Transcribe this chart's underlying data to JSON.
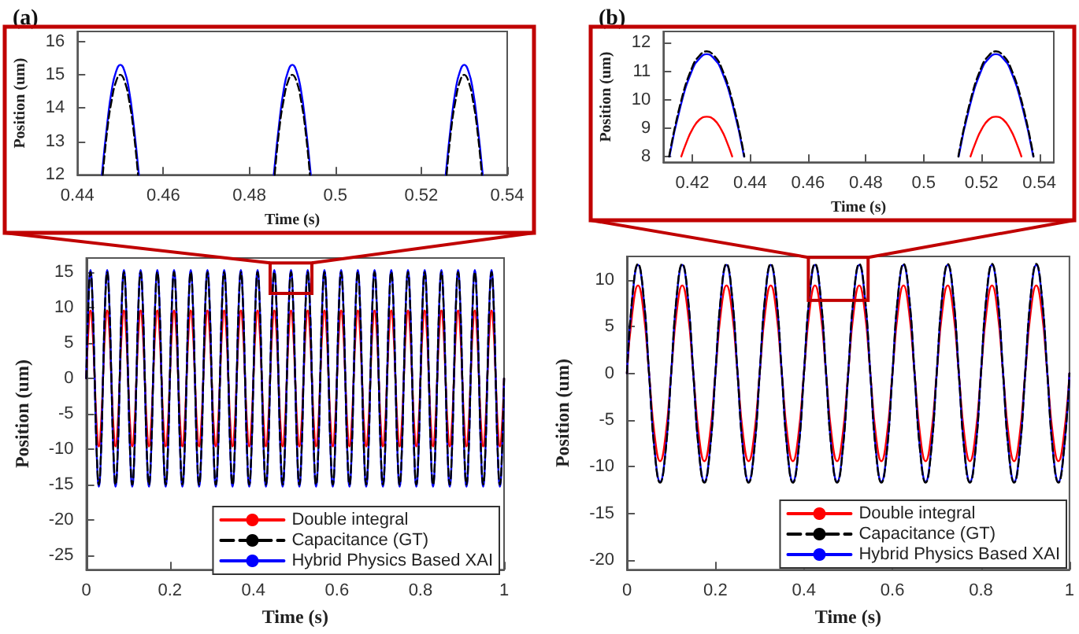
{
  "chart_data": [
    {
      "type": "line",
      "title": "(a)",
      "xlabel": "Time (s)",
      "ylabel": "Position (um)",
      "xlim": [
        0.44,
        0.54
      ],
      "xticks": [
        0.44,
        0.46,
        0.48,
        0.5,
        0.52,
        0.54
      ],
      "ylim": [
        12,
        16.3
      ],
      "yticks": [
        12,
        13,
        14,
        15,
        16
      ],
      "marker": "none",
      "series": [
        {
          "color": "#0000ff",
          "line_style": "solid",
          "x": [
            0.4457,
            0.447,
            0.448,
            0.449,
            0.45,
            0.451,
            0.452,
            0.453,
            0.4543,
            0.47,
            0.4857,
            0.487,
            0.488,
            0.489,
            0.49,
            0.491,
            0.492,
            0.493,
            0.4943,
            0.51,
            0.5257,
            0.527,
            0.528,
            0.529,
            0.53,
            0.531,
            0.532,
            0.533,
            0.5343
          ],
          "values": [
            12,
            13.6,
            14.55,
            15.1,
            15.3,
            15.1,
            14.55,
            13.6,
            12,
            null,
            12,
            13.6,
            14.55,
            15.1,
            15.3,
            15.1,
            14.55,
            13.6,
            12,
            null,
            12,
            13.6,
            14.55,
            15.1,
            15.3,
            15.1,
            14.55,
            13.6,
            12
          ]
        },
        {
          "color": "#000000",
          "line_style": "dashed",
          "x": [
            0.4459,
            0.447,
            0.448,
            0.449,
            0.45,
            0.451,
            0.452,
            0.453,
            0.4541,
            0.47,
            0.4859,
            0.487,
            0.488,
            0.489,
            0.49,
            0.491,
            0.492,
            0.493,
            0.4941,
            0.51,
            0.5259,
            0.527,
            0.528,
            0.529,
            0.53,
            0.531,
            0.532,
            0.533,
            0.5341
          ],
          "values": [
            12,
            13.4,
            14.25,
            14.8,
            15,
            14.8,
            14.25,
            13.4,
            12,
            null,
            12,
            13.4,
            14.25,
            14.8,
            15,
            14.8,
            14.25,
            13.4,
            12,
            null,
            12,
            13.4,
            14.25,
            14.8,
            15,
            14.8,
            14.25,
            13.4,
            12
          ]
        }
      ]
    },
    {
      "type": "line",
      "xlabel": "Time (s)",
      "ylabel": "Position (um)",
      "xlim": [
        0,
        1
      ],
      "xticks": [
        0,
        0.2,
        0.4,
        0.6,
        0.8,
        1
      ],
      "ylim": [
        -27,
        17
      ],
      "yticks": [
        -25,
        -20,
        -15,
        -10,
        -5,
        0,
        5,
        10,
        15
      ],
      "marker": "none",
      "legend": "bottom right",
      "x": [
        0,
        0.005,
        0.01,
        0.015,
        0.02,
        0.025,
        0.03,
        0.035,
        0.04,
        0.045,
        0.05,
        0.055,
        0.06,
        0.065,
        0.07,
        0.075,
        0.08,
        0.085,
        0.09,
        0.095,
        0.1,
        0.105,
        0.11,
        0.115,
        0.12,
        0.125,
        0.13,
        0.135,
        0.14,
        0.145,
        0.15,
        0.155,
        0.16,
        0.165,
        0.17,
        0.175,
        0.18,
        0.185,
        0.19,
        0.195,
        0.2,
        0.205,
        0.21,
        0.215,
        0.22,
        0.225,
        0.23,
        0.235,
        0.24,
        0.245,
        0.25,
        0.255,
        0.26,
        0.265,
        0.27,
        0.275,
        0.28,
        0.285,
        0.29,
        0.295,
        0.3,
        0.305,
        0.31,
        0.315,
        0.32,
        0.325,
        0.33,
        0.335,
        0.34,
        0.345,
        0.35,
        0.355,
        0.36,
        0.365,
        0.37,
        0.375,
        0.38,
        0.385,
        0.39,
        0.395,
        0.4,
        0.405,
        0.41,
        0.415,
        0.42,
        0.425,
        0.43,
        0.435,
        0.44,
        0.445,
        0.45,
        0.455,
        0.46,
        0.465,
        0.47,
        0.475,
        0.48,
        0.485,
        0.49,
        0.495,
        0.5,
        0.505,
        0.51,
        0.515,
        0.52,
        0.525,
        0.53,
        0.535,
        0.54,
        0.545,
        0.55,
        0.555,
        0.56,
        0.565,
        0.57,
        0.575,
        0.58,
        0.585,
        0.59,
        0.595,
        0.6,
        0.605,
        0.61,
        0.615,
        0.62,
        0.625,
        0.63,
        0.635,
        0.64,
        0.645,
        0.65,
        0.655,
        0.66,
        0.665,
        0.67,
        0.675,
        0.68,
        0.685,
        0.69,
        0.695,
        0.7,
        0.705,
        0.71,
        0.715,
        0.72,
        0.725,
        0.73,
        0.735,
        0.74,
        0.745,
        0.75,
        0.755,
        0.76,
        0.765,
        0.77,
        0.775,
        0.78,
        0.785,
        0.79,
        0.795,
        0.8,
        0.805,
        0.81,
        0.815,
        0.82,
        0.825,
        0.83,
        0.835,
        0.84,
        0.845,
        0.85,
        0.855,
        0.86,
        0.865,
        0.87,
        0.875,
        0.88,
        0.885,
        0.89,
        0.895,
        0.9,
        0.905,
        0.91,
        0.915,
        0.92,
        0.925,
        0.93,
        0.935,
        0.94,
        0.945,
        0.95,
        0.955,
        0.96,
        0.965,
        0.97,
        0.975,
        0.98,
        0.985,
        0.99,
        0.995,
        1
      ],
      "series": [
        {
          "name": "Double integral",
          "color": "#ff0000",
          "line_style": "solid",
          "values": [
            0,
            6.8,
            9.6,
            6.8,
            0,
            -6.8,
            -9.6,
            -6.8,
            0,
            6.8,
            9.6,
            6.8,
            0,
            -6.8,
            -9.6,
            -6.8,
            0,
            6.8,
            9.6,
            6.8,
            0,
            -6.8,
            -9.6,
            -6.8,
            0,
            6.8,
            9.6,
            6.8,
            0,
            -6.8,
            -9.6,
            -6.8,
            0,
            6.8,
            9.6,
            6.8,
            0,
            -6.8,
            -9.6,
            -6.8,
            0,
            6.8,
            9.6,
            6.8,
            0,
            -6.8,
            -9.6,
            -6.8,
            0,
            6.8,
            9.6,
            6.8,
            0,
            -6.8,
            -9.6,
            -6.8,
            0,
            6.8,
            9.6,
            6.8,
            0,
            -6.8,
            -9.6,
            -6.8,
            0,
            6.8,
            9.6,
            6.8,
            0,
            -6.8,
            -9.6,
            -6.8,
            0,
            6.8,
            9.6,
            6.8,
            0,
            -6.8,
            -9.6,
            -6.8,
            0,
            6.8,
            9.6,
            6.8,
            0,
            -6.8,
            -9.6,
            -6.8,
            0,
            6.8,
            9.6,
            6.8,
            0,
            -6.8,
            -9.6,
            -6.8,
            0,
            6.8,
            9.6,
            6.8,
            0,
            -6.8,
            -9.6,
            -6.8,
            0,
            6.8,
            9.6,
            6.8,
            0,
            -6.8,
            -9.6,
            -6.8,
            0,
            6.8,
            9.6,
            6.8,
            0,
            -6.8,
            -9.6,
            -6.8,
            0,
            6.8,
            9.6,
            6.8,
            0,
            -6.8,
            -9.6,
            -6.8,
            0,
            6.8,
            9.6,
            6.8,
            0,
            -6.8,
            -9.6,
            -6.8,
            0,
            6.8,
            9.6,
            6.8,
            0,
            -6.8,
            -9.6,
            -6.8,
            0,
            6.8,
            9.6,
            6.8,
            0,
            -6.8,
            -9.6,
            -6.8,
            0,
            6.8,
            9.6,
            6.8,
            0,
            -6.8,
            -9.6,
            -6.8,
            0,
            6.8,
            9.6,
            6.8,
            0,
            -6.8,
            -9.6,
            -6.8,
            0,
            6.8,
            9.6,
            6.8,
            0,
            -6.8,
            -9.6,
            -6.8,
            0,
            6.8,
            9.6,
            6.8,
            0,
            -6.8,
            -9.6,
            -6.8,
            0,
            6.8,
            9.6,
            6.8,
            0,
            -6.8,
            -9.6,
            -6.8,
            0,
            6.8,
            9.6,
            6.8,
            0,
            -6.8,
            -9.6,
            -6.8,
            0
          ]
        },
        {
          "name": "Capacitance (GT)",
          "color": "#000000",
          "line_style": "dashed",
          "values": [
            0,
            10.6,
            15,
            10.6,
            0,
            -10.6,
            -15,
            -10.6,
            0,
            10.6,
            15,
            10.6,
            0,
            -10.6,
            -15,
            -10.6,
            0,
            10.6,
            15,
            10.6,
            0,
            -10.6,
            -15,
            -10.6,
            0,
            10.6,
            15,
            10.6,
            0,
            -10.6,
            -15,
            -10.6,
            0,
            10.6,
            15,
            10.6,
            0,
            -10.6,
            -15,
            -10.6,
            0,
            10.6,
            15,
            10.6,
            0,
            -10.6,
            -15,
            -10.6,
            0,
            10.6,
            15,
            10.6,
            0,
            -10.6,
            -15,
            -10.6,
            0,
            10.6,
            15,
            10.6,
            0,
            -10.6,
            -15,
            -10.6,
            0,
            10.6,
            15,
            10.6,
            0,
            -10.6,
            -15,
            -10.6,
            0,
            10.6,
            15,
            10.6,
            0,
            -10.6,
            -15,
            -10.6,
            0,
            10.6,
            15,
            10.6,
            0,
            -10.6,
            -15,
            -10.6,
            0,
            10.6,
            15,
            10.6,
            0,
            -10.6,
            -15,
            -10.6,
            0,
            10.6,
            15,
            10.6,
            0,
            -10.6,
            -15,
            -10.6,
            0,
            10.6,
            15,
            10.6,
            0,
            -10.6,
            -15,
            -10.6,
            0,
            10.6,
            15,
            10.6,
            0,
            -10.6,
            -15,
            -10.6,
            0,
            10.6,
            15,
            10.6,
            0,
            -10.6,
            -15,
            -10.6,
            0,
            10.6,
            15,
            10.6,
            0,
            -10.6,
            -15,
            -10.6,
            0,
            10.6,
            15,
            10.6,
            0,
            -10.6,
            -15,
            -10.6,
            0,
            10.6,
            15,
            10.6,
            0,
            -10.6,
            -15,
            -10.6,
            0,
            10.6,
            15,
            10.6,
            0,
            -10.6,
            -15,
            -10.6,
            0,
            10.6,
            15,
            10.6,
            0,
            -10.6,
            -15,
            -10.6,
            0,
            10.6,
            15,
            10.6,
            0,
            -10.6,
            -15,
            -10.6,
            0,
            10.6,
            15,
            10.6,
            0,
            -10.6,
            -15,
            -10.6,
            0,
            10.6,
            15,
            10.6,
            0,
            -10.6,
            -15,
            -10.6,
            0,
            10.6,
            15,
            10.6,
            0,
            -10.6,
            -15,
            -10.6,
            0
          ]
        },
        {
          "name": "Hybrid Physics Based XAI",
          "color": "#0000ff",
          "line_style": "solid",
          "values": [
            0,
            10.8,
            15.3,
            10.8,
            0,
            -10.8,
            -15.3,
            -10.8,
            0,
            10.8,
            15.3,
            10.8,
            0,
            -10.8,
            -15.3,
            -10.8,
            0,
            10.8,
            15.3,
            10.8,
            0,
            -10.8,
            -15.3,
            -10.8,
            0,
            10.8,
            15.3,
            10.8,
            0,
            -10.8,
            -15.3,
            -10.8,
            0,
            10.8,
            15.3,
            10.8,
            0,
            -10.8,
            -15.3,
            -10.8,
            0,
            10.8,
            15.3,
            10.8,
            0,
            -10.8,
            -15.3,
            -10.8,
            0,
            10.8,
            15.3,
            10.8,
            0,
            -10.8,
            -15.3,
            -10.8,
            0,
            10.8,
            15.3,
            10.8,
            0,
            -10.8,
            -15.3,
            -10.8,
            0,
            10.8,
            15.3,
            10.8,
            0,
            -10.8,
            -15.3,
            -10.8,
            0,
            10.8,
            15.3,
            10.8,
            0,
            -10.8,
            -15.3,
            -10.8,
            0,
            10.8,
            15.3,
            10.8,
            0,
            -10.8,
            -15.3,
            -10.8,
            0,
            10.8,
            15.3,
            10.8,
            0,
            -10.8,
            -15.3,
            -10.8,
            0,
            10.8,
            15.3,
            10.8,
            0,
            -10.8,
            -15.3,
            -10.8,
            0,
            10.8,
            15.3,
            10.8,
            0,
            -10.8,
            -15.3,
            -10.8,
            0,
            10.8,
            15.3,
            10.8,
            0,
            -10.8,
            -15.3,
            -10.8,
            0,
            10.8,
            15.3,
            10.8,
            0,
            -10.8,
            -15.3,
            -10.8,
            0,
            10.8,
            15.3,
            10.8,
            0,
            -10.8,
            -15.3,
            -10.8,
            0,
            10.8,
            15.3,
            10.8,
            0,
            -10.8,
            -15.3,
            -10.8,
            0,
            10.8,
            15.3,
            10.8,
            0,
            -10.8,
            -15.3,
            -10.8,
            0,
            10.8,
            15.3,
            10.8,
            0,
            -10.8,
            -15.3,
            -10.8,
            0,
            10.8,
            15.3,
            10.8,
            0,
            -10.8,
            -15.3,
            -10.8,
            0,
            10.8,
            15.3,
            10.8,
            0,
            -10.8,
            -15.3,
            -10.8,
            0,
            10.8,
            15.3,
            10.8,
            0,
            -10.8,
            -15.3,
            -10.8,
            0,
            10.8,
            15.3,
            10.8,
            0,
            -10.8,
            -15.3,
            -10.8,
            0,
            10.8,
            15.3,
            10.8,
            0,
            -10.8,
            -15.3,
            -10.8,
            0
          ]
        }
      ]
    },
    {
      "type": "line",
      "title": "(b)",
      "xlabel": "Time (s)",
      "ylabel": "Position (um)",
      "xlim": [
        0.41,
        0.545
      ],
      "xticks": [
        0.42,
        0.44,
        0.46,
        0.48,
        0.5,
        0.52,
        0.54
      ],
      "ylim": [
        7.8,
        12.4
      ],
      "yticks": [
        8,
        9,
        10,
        11,
        12
      ],
      "marker": "none",
      "series": [
        {
          "color": "#ff0000",
          "line_style": "solid",
          "x": [
            0.4162,
            0.418,
            0.42,
            0.4225,
            0.425,
            0.4275,
            0.43,
            0.432,
            0.4338,
            0.475,
            0.5162,
            0.518,
            0.52,
            0.5225,
            0.525,
            0.5275,
            0.53,
            0.532,
            0.5338
          ],
          "values": [
            8,
            8.5,
            8.95,
            9.3,
            9.4,
            9.3,
            8.95,
            8.5,
            8,
            null,
            8,
            8.5,
            8.95,
            9.3,
            9.4,
            9.3,
            8.95,
            8.5,
            8
          ]
        },
        {
          "color": "#000000",
          "line_style": "dashed",
          "x": [
            0.412,
            0.416,
            0.42,
            0.4225,
            0.425,
            0.4275,
            0.43,
            0.434,
            0.438,
            0.475,
            0.512,
            0.516,
            0.52,
            0.5225,
            0.525,
            0.5275,
            0.53,
            0.534,
            0.538
          ],
          "values": [
            8,
            9.9,
            11.15,
            11.55,
            11.7,
            11.55,
            11.15,
            9.9,
            8,
            null,
            8,
            9.9,
            11.15,
            11.55,
            11.7,
            11.55,
            11.15,
            9.9,
            8
          ]
        },
        {
          "color": "#0000ff",
          "line_style": "solid",
          "x": [
            0.4121,
            0.416,
            0.42,
            0.4225,
            0.425,
            0.4275,
            0.43,
            0.434,
            0.4379,
            0.475,
            0.5121,
            0.516,
            0.52,
            0.5225,
            0.525,
            0.5275,
            0.53,
            0.534,
            0.5379
          ],
          "values": [
            8,
            9.8,
            11.05,
            11.45,
            11.6,
            11.45,
            11.05,
            9.8,
            8,
            null,
            8,
            9.8,
            11.05,
            11.45,
            11.6,
            11.45,
            11.05,
            9.8,
            8
          ]
        }
      ]
    },
    {
      "type": "line",
      "xlabel": "Time (s)",
      "ylabel": "Position (um)",
      "xlim": [
        0,
        1
      ],
      "xticks": [
        0,
        0.2,
        0.4,
        0.6,
        0.8,
        1
      ],
      "ylim": [
        -21,
        12.5
      ],
      "yticks": [
        -20,
        -15,
        -10,
        -5,
        0,
        5,
        10
      ],
      "marker": "none",
      "legend": "bottom right",
      "x": [
        0,
        0.0125,
        0.025,
        0.0375,
        0.05,
        0.0625,
        0.075,
        0.0875,
        0.1,
        0.1125,
        0.125,
        0.1375,
        0.15,
        0.1625,
        0.175,
        0.1875,
        0.2,
        0.2125,
        0.225,
        0.2375,
        0.25,
        0.2625,
        0.275,
        0.2875,
        0.3,
        0.3125,
        0.325,
        0.3375,
        0.35,
        0.3625,
        0.375,
        0.3875,
        0.4,
        0.4125,
        0.425,
        0.4375,
        0.45,
        0.4625,
        0.475,
        0.4875,
        0.5,
        0.5125,
        0.525,
        0.5375,
        0.55,
        0.5625,
        0.575,
        0.5875,
        0.6,
        0.6125,
        0.625,
        0.6375,
        0.65,
        0.6625,
        0.675,
        0.6875,
        0.7,
        0.7125,
        0.725,
        0.7375,
        0.75,
        0.7625,
        0.775,
        0.7875,
        0.8,
        0.8125,
        0.825,
        0.8375,
        0.85,
        0.8625,
        0.875,
        0.8875,
        0.9,
        0.9125,
        0.925,
        0.9375,
        0.95,
        0.9625,
        0.975,
        0.9875,
        1
      ],
      "series": [
        {
          "name": "Double integral",
          "color": "#ff0000",
          "line_style": "solid",
          "values": [
            0,
            6.6,
            9.4,
            6.6,
            0,
            -6.6,
            -9.4,
            -6.6,
            0,
            6.6,
            9.4,
            6.6,
            0,
            -6.6,
            -9.4,
            -6.6,
            0,
            6.6,
            9.4,
            6.6,
            0,
            -6.6,
            -9.4,
            -6.6,
            0,
            6.6,
            9.4,
            6.6,
            0,
            -6.6,
            -9.4,
            -6.6,
            0,
            6.6,
            9.4,
            6.6,
            0,
            -6.6,
            -9.4,
            -6.6,
            0,
            6.6,
            9.4,
            6.6,
            0,
            -6.6,
            -9.4,
            -6.6,
            0,
            6.6,
            9.4,
            6.6,
            0,
            -6.6,
            -9.4,
            -6.6,
            0,
            6.6,
            9.4,
            6.6,
            0,
            -6.6,
            -9.4,
            -6.6,
            0,
            6.6,
            9.4,
            6.6,
            0,
            -6.6,
            -9.4,
            -6.6,
            0,
            6.6,
            9.4,
            6.6,
            0,
            -6.6,
            -9.4,
            -6.6,
            0
          ]
        },
        {
          "name": "Capacitance (GT)",
          "color": "#000000",
          "line_style": "dashed",
          "values": [
            0,
            8.3,
            11.7,
            8.3,
            0,
            -8.3,
            -11.7,
            -8.3,
            0,
            8.3,
            11.7,
            8.3,
            0,
            -8.3,
            -11.7,
            -8.3,
            0,
            8.3,
            11.7,
            8.3,
            0,
            -8.3,
            -11.7,
            -8.3,
            0,
            8.3,
            11.7,
            8.3,
            0,
            -8.3,
            -11.7,
            -8.3,
            0,
            8.3,
            11.7,
            8.3,
            0,
            -8.3,
            -11.7,
            -8.3,
            0,
            8.3,
            11.7,
            8.3,
            0,
            -8.3,
            -11.7,
            -8.3,
            0,
            8.3,
            11.7,
            8.3,
            0,
            -8.3,
            -11.7,
            -8.3,
            0,
            8.3,
            11.7,
            8.3,
            0,
            -8.3,
            -11.7,
            -8.3,
            0,
            8.3,
            11.7,
            8.3,
            0,
            -8.3,
            -11.7,
            -8.3,
            0,
            8.3,
            11.7,
            8.3,
            0,
            -8.3,
            -11.7,
            -8.3,
            0
          ]
        },
        {
          "name": "Hybrid Physics Based XAI",
          "color": "#0000ff",
          "line_style": "solid",
          "values": [
            0,
            8.2,
            11.6,
            8.2,
            0,
            -8.2,
            -11.6,
            -8.2,
            0,
            8.2,
            11.6,
            8.2,
            0,
            -8.2,
            -11.6,
            -8.2,
            0,
            8.2,
            11.6,
            8.2,
            0,
            -8.2,
            -11.6,
            -8.2,
            0,
            8.2,
            11.6,
            8.2,
            0,
            -8.2,
            -11.6,
            -8.2,
            0,
            8.2,
            11.6,
            8.2,
            0,
            -8.2,
            -11.6,
            -8.2,
            0,
            8.2,
            11.6,
            8.2,
            0,
            -8.2,
            -11.6,
            -8.2,
            0,
            8.2,
            11.6,
            8.2,
            0,
            -8.2,
            -11.6,
            -8.2,
            0,
            8.2,
            11.6,
            8.2,
            0,
            -8.2,
            -11.6,
            -8.2,
            0,
            8.2,
            11.6,
            8.2,
            0,
            -8.2,
            -11.6,
            -8.2,
            0,
            8.2,
            11.6,
            8.2,
            0,
            -8.2,
            -11.6,
            -8.2,
            0
          ]
        }
      ]
    }
  ]
}
